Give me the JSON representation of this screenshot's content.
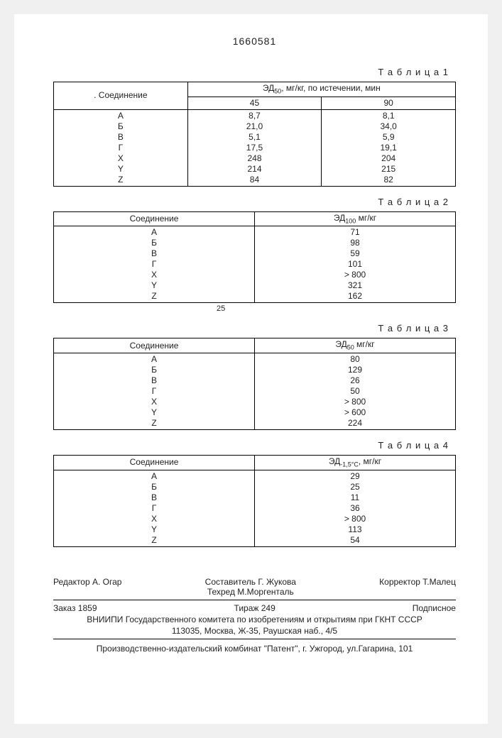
{
  "document_number": "1660581",
  "tables": {
    "t1": {
      "label": "Т а б л и ц а 1",
      "col1": ". Соединение",
      "header_span": "ЭД₅₀, мг/кг, по истечении, мин",
      "sub_headers": [
        "45",
        "90"
      ],
      "rows": [
        {
          "c": "А",
          "v45": "8,7",
          "v90": "8,1"
        },
        {
          "c": "Б",
          "v45": "21,0",
          "v90": "34,0"
        },
        {
          "c": "В",
          "v45": "5,1",
          "v90": "5,9"
        },
        {
          "c": "Г",
          "v45": "17,5",
          "v90": "19,1"
        },
        {
          "c": "X",
          "v45": "248",
          "v90": "204"
        },
        {
          "c": "Y",
          "v45": "214",
          "v90": "215"
        },
        {
          "c": "Z",
          "v45": "84",
          "v90": "82"
        }
      ]
    },
    "t2": {
      "label": "Т а б л и ц а 2",
      "col1": "Соединение",
      "col2": "ЭД₁₀₀ мг/кг",
      "rows": [
        {
          "c": "А",
          "v": "71"
        },
        {
          "c": "Б",
          "v": "98"
        },
        {
          "c": "В",
          "v": "59"
        },
        {
          "c": "Г",
          "v": "101"
        },
        {
          "c": "X",
          "v": "> 800"
        },
        {
          "c": "Y",
          "v": "321"
        },
        {
          "c": "Z",
          "v": "162"
        }
      ]
    },
    "t3": {
      "label": "Т а б л и ц а 3",
      "col1": "Соединение",
      "col2": "ЭД₅₀ мг/кг",
      "rows": [
        {
          "c": "А",
          "v": "80"
        },
        {
          "c": "Б",
          "v": "129"
        },
        {
          "c": "В",
          "v": "26"
        },
        {
          "c": "Г",
          "v": "50"
        },
        {
          "c": "X",
          "v": "> 800"
        },
        {
          "c": "Y",
          "v": "> 600"
        },
        {
          "c": "Z",
          "v": "224"
        }
      ]
    },
    "t4": {
      "label": "Т а б л и ц а 4",
      "col1": "Соединение",
      "col2": "ЭД₋₁,₅°C, мг/кг",
      "rows": [
        {
          "c": "А",
          "v": "29"
        },
        {
          "c": "Б",
          "v": "25"
        },
        {
          "c": "В",
          "v": "11"
        },
        {
          "c": "Г",
          "v": "36"
        },
        {
          "c": "X",
          "v": "> 800"
        },
        {
          "c": "Y",
          "v": "113"
        },
        {
          "c": "Z",
          "v": "54"
        }
      ]
    }
  },
  "extra25": "25",
  "credits": {
    "editor": "Редактор  А. Огар",
    "compiler": "Составитель  Г. Жукова",
    "techred": "Техред М.Моргенталь",
    "corrector": "Корректор  Т.Малец",
    "order": "Заказ 1859",
    "tirage": "Тираж 249",
    "subscr": "Подписное",
    "org": "ВНИИПИ Государственного комитета по изобретениям и открытиям при ГКНТ СССР",
    "addr": "113035, Москва, Ж-35, Раушская наб., 4/5",
    "printer": "Производственно-издательский комбинат \"Патент\", г. Ужгород, ул.Гагарина, 101"
  }
}
